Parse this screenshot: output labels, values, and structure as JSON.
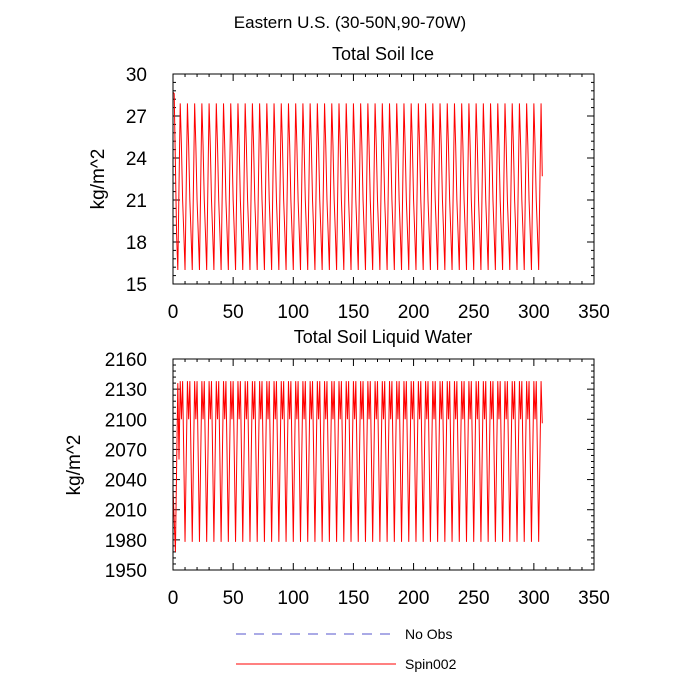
{
  "figure": {
    "title": "Eastern U.S. (30-50N,90-70W)"
  },
  "legend": {
    "items": [
      {
        "label": "No Obs",
        "color": "#5555cc",
        "style": "dashed"
      },
      {
        "label": "Spin002",
        "color": "#ff0000",
        "style": "solid"
      }
    ]
  },
  "chart_data": [
    {
      "type": "line",
      "title": "Total Soil Ice",
      "xlabel": "",
      "ylabel": "kg/m^2",
      "xlim": [
        0,
        350
      ],
      "ylim": [
        15,
        30
      ],
      "xticks": [
        0,
        50,
        100,
        150,
        200,
        250,
        300,
        350
      ],
      "yticks": [
        15,
        18,
        21,
        24,
        27,
        30
      ],
      "series": [
        {
          "name": "Spin002",
          "color": "#ff0000",
          "period": 6,
          "n_points": 308,
          "start": [
            0,
            28.7
          ],
          "first_cycle": [
            {
              "x": 1,
              "y": 28.6
            },
            {
              "x": 3,
              "y": 18.5
            },
            {
              "x": 4,
              "y": 16.0
            }
          ],
          "cycle": [
            16.0,
            22.0,
            27.9,
            24.9,
            21.0,
            18.6
          ],
          "end_y": 22.7
        }
      ]
    },
    {
      "type": "line",
      "title": "Total Soil Liquid Water",
      "xlabel": "",
      "ylabel": "kg/m^2",
      "xlim": [
        0,
        350
      ],
      "ylim": [
        1950,
        2160
      ],
      "xticks": [
        0,
        50,
        100,
        150,
        200,
        250,
        300,
        350
      ],
      "yticks": [
        1950,
        1980,
        2010,
        2040,
        2070,
        2100,
        2130,
        2160
      ],
      "series": [
        {
          "name": "Spin002",
          "color": "#ff0000",
          "period": 6,
          "n_points": 308,
          "start": [
            0,
            2030
          ],
          "first_cycle": [
            {
              "x": 1,
              "y": 2000
            },
            {
              "x": 2,
              "y": 1968
            },
            {
              "x": 4,
              "y": 2136
            }
          ],
          "cycle": [
            1978,
            2060,
            2138,
            2100,
            2138,
            2060
          ],
          "end_y": 2096
        }
      ]
    }
  ]
}
